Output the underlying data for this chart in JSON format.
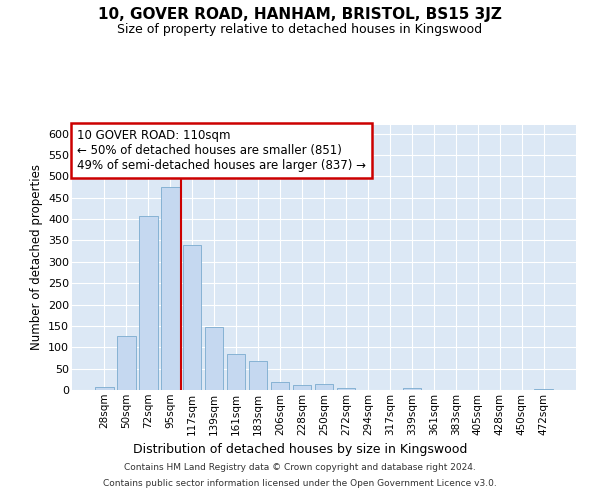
{
  "title": "10, GOVER ROAD, HANHAM, BRISTOL, BS15 3JZ",
  "subtitle": "Size of property relative to detached houses in Kingswood",
  "xlabel": "Distribution of detached houses by size in Kingswood",
  "ylabel": "Number of detached properties",
  "bar_color": "#c5d8f0",
  "bar_edge_color": "#7aabcf",
  "bg_color": "#dce8f5",
  "grid_color": "#ffffff",
  "fig_bg": "#ffffff",
  "categories": [
    "28sqm",
    "50sqm",
    "72sqm",
    "95sqm",
    "117sqm",
    "139sqm",
    "161sqm",
    "183sqm",
    "206sqm",
    "228sqm",
    "250sqm",
    "272sqm",
    "294sqm",
    "317sqm",
    "339sqm",
    "361sqm",
    "383sqm",
    "405sqm",
    "428sqm",
    "450sqm",
    "472sqm"
  ],
  "values": [
    8,
    126,
    406,
    475,
    340,
    147,
    84,
    68,
    18,
    11,
    13,
    5,
    0,
    0,
    4,
    0,
    0,
    0,
    0,
    0,
    3
  ],
  "ylim": [
    0,
    620
  ],
  "yticks": [
    0,
    50,
    100,
    150,
    200,
    250,
    300,
    350,
    400,
    450,
    500,
    550,
    600
  ],
  "red_line_bar_index": 4,
  "annotation_line1": "10 GOVER ROAD: 110sqm",
  "annotation_line2": "← 50% of detached houses are smaller (851)",
  "annotation_line3": "49% of semi-detached houses are larger (837) →",
  "ann_box_facecolor": "#ffffff",
  "ann_box_edgecolor": "#cc0000",
  "footer1": "Contains HM Land Registry data © Crown copyright and database right 2024.",
  "footer2": "Contains public sector information licensed under the Open Government Licence v3.0."
}
